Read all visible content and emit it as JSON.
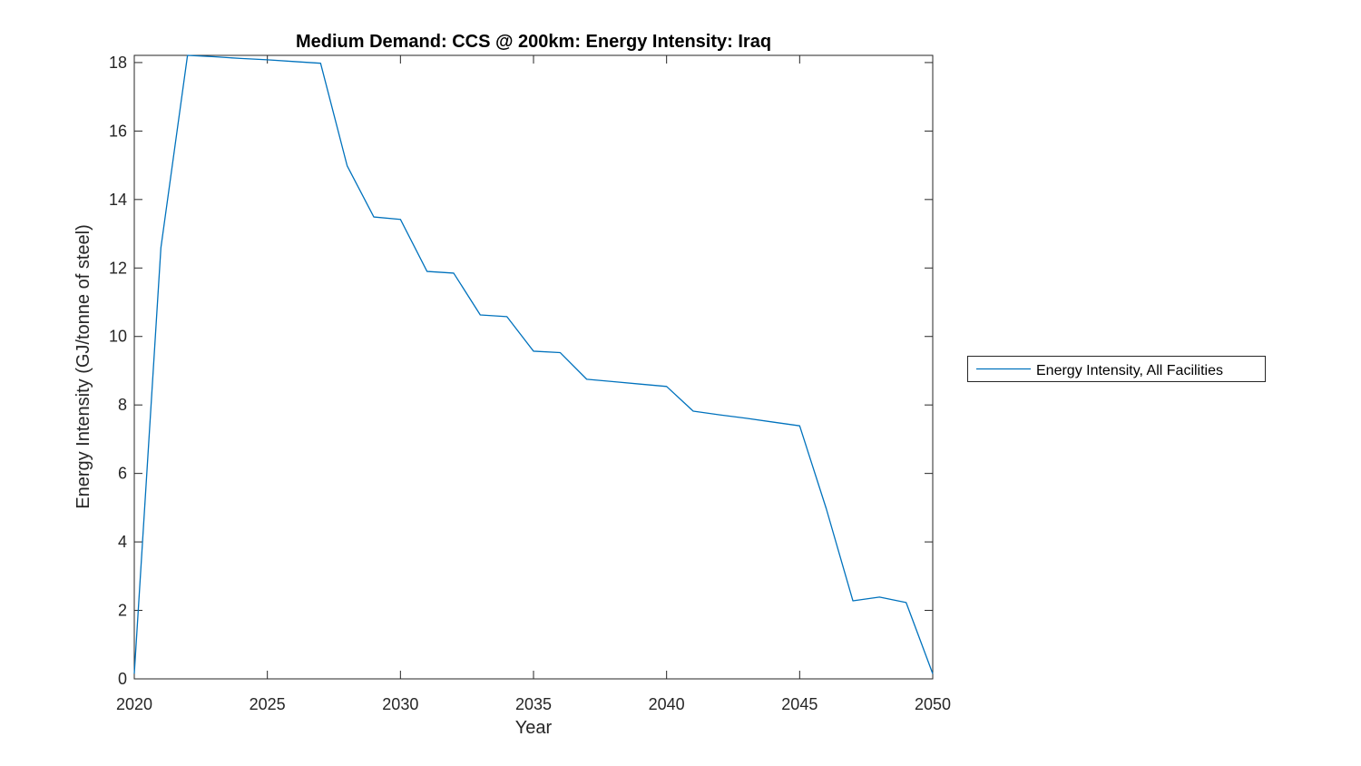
{
  "figure": {
    "background_color": "#ffffff"
  },
  "chart_data": {
    "type": "line",
    "title": "Medium Demand: CCS @ 200km: Energy Intensity: Iraq",
    "xlabel": "Year",
    "ylabel": "Energy Intensity (GJ/tonne of steel)",
    "xlim": [
      2020,
      2050
    ],
    "ylim": [
      0,
      18.21
    ],
    "xticks": [
      2020,
      2025,
      2030,
      2035,
      2040,
      2045,
      2050
    ],
    "yticks": [
      0,
      2,
      4,
      6,
      8,
      10,
      12,
      14,
      16,
      18
    ],
    "grid": false,
    "axis_color": "#262626",
    "text_color": "#262626",
    "x": [
      2020,
      2021,
      2022,
      2023,
      2024,
      2025,
      2026,
      2027,
      2028,
      2029,
      2030,
      2031,
      2032,
      2033,
      2034,
      2035,
      2036,
      2037,
      2038,
      2039,
      2040,
      2041,
      2042,
      2043,
      2044,
      2045,
      2046,
      2047,
      2048,
      2049,
      2050
    ],
    "series": [
      {
        "name": "Energy Intensity, All Facilities",
        "color": "#0072BD",
        "values": [
          0.15,
          12.59,
          18.21,
          18.17,
          18.12,
          18.08,
          18.03,
          17.98,
          14.98,
          13.49,
          13.42,
          11.9,
          11.85,
          10.63,
          10.58,
          9.57,
          9.53,
          8.75,
          8.68,
          8.61,
          8.54,
          7.82,
          7.71,
          7.61,
          7.5,
          7.39,
          4.97,
          2.28,
          2.39,
          2.23,
          0.15
        ]
      }
    ],
    "legend": {
      "position": "outside-right",
      "entries": [
        "Energy Intensity, All Facilities"
      ]
    }
  }
}
